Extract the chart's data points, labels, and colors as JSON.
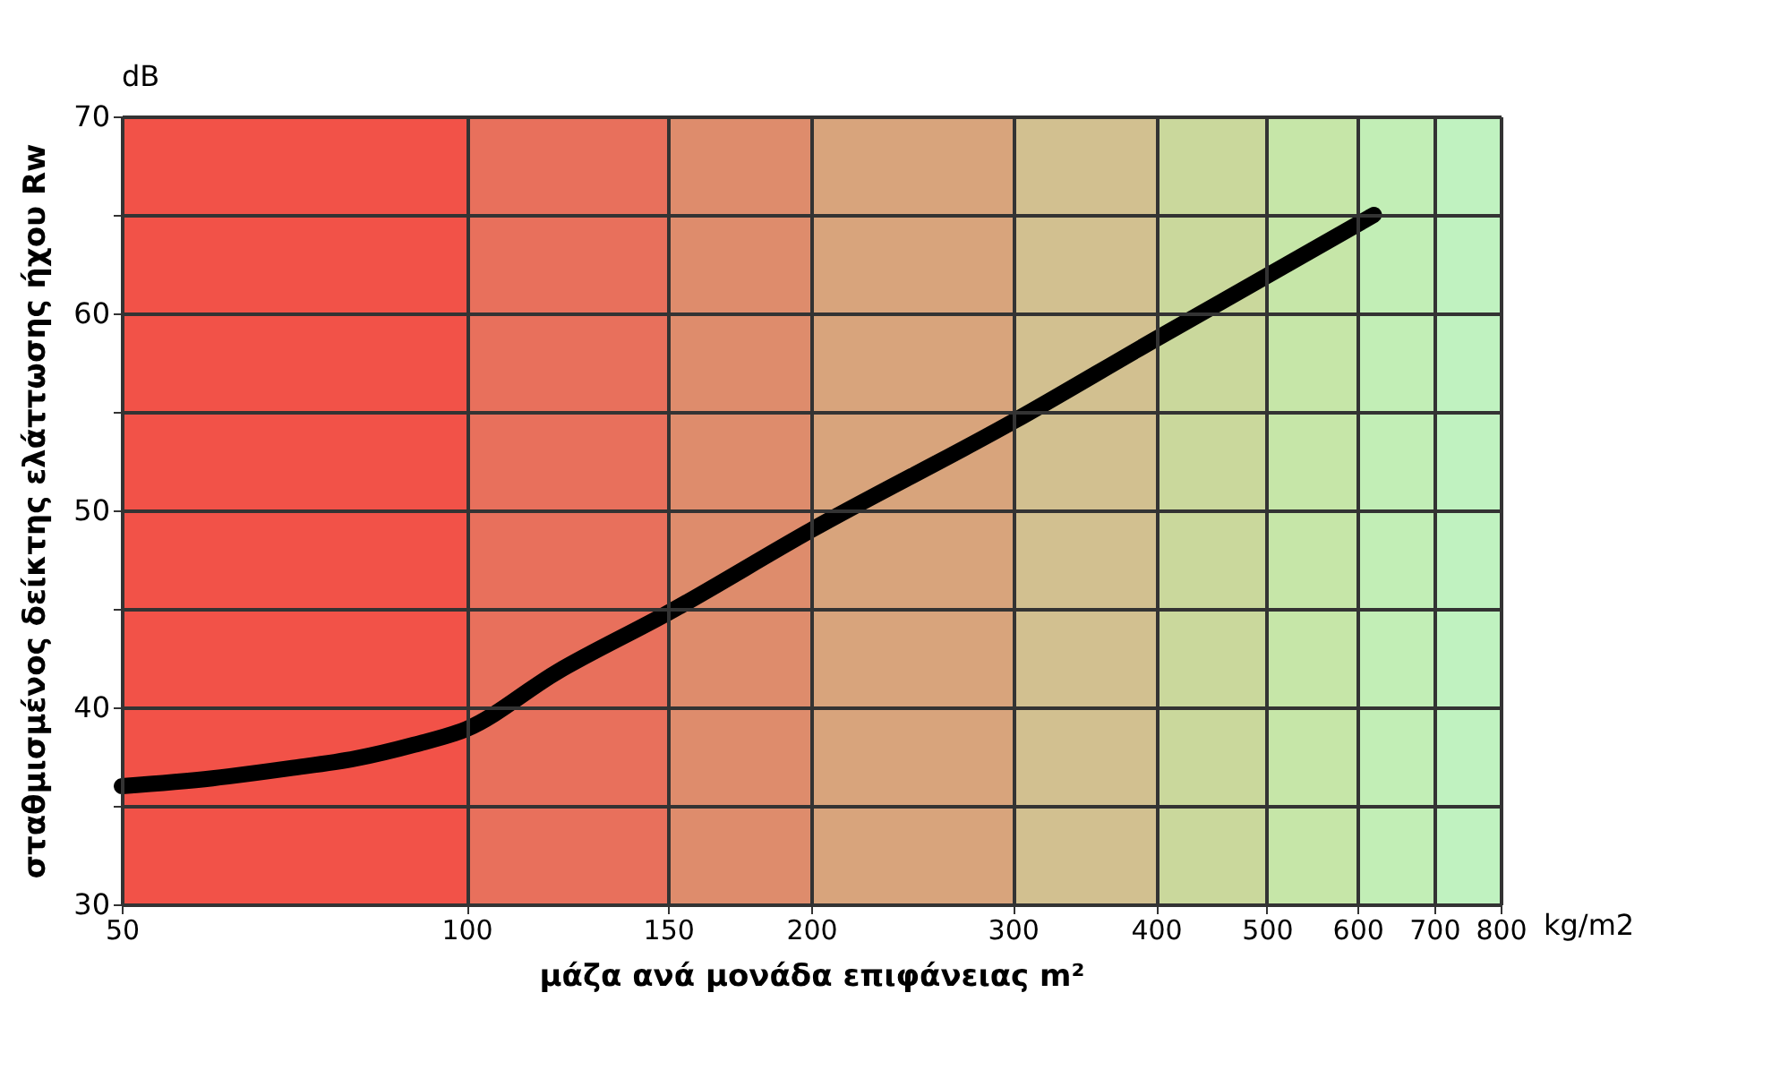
{
  "chart_data": {
    "type": "line",
    "xlabel": "μάζα ανά μονάδα επιφάνειας m²",
    "ylabel": "σταθμισμένος δείκτης ελάττωσης ήχου Rw",
    "annotations": [
      "dB",
      "kg/m2"
    ],
    "x": [
      50,
      60,
      70,
      80,
      90,
      100,
      120,
      150,
      200,
      300,
      400,
      500,
      620
    ],
    "series": [
      {
        "color": "#000000",
        "values": [
          36,
          36.4,
          36.9,
          37.4,
          38.1,
          38.9,
          41.8,
          44.8,
          49,
          54.5,
          58.7,
          61.9,
          65
        ]
      }
    ],
    "log": "x",
    "xlim": [
      50,
      800
    ],
    "xticks": [
      50,
      100,
      150,
      200,
      300,
      400,
      500,
      600,
      700,
      800
    ],
    "ylim": [
      30,
      70
    ],
    "yticks": [
      30,
      {
        "value": 35,
        "label": null
      },
      40,
      {
        "value": 45,
        "label": null
      },
      50,
      {
        "value": 55,
        "label": null
      },
      60,
      {
        "value": 65,
        "label": null
      },
      70
    ],
    "grid": true,
    "marker": "none",
    "line_style": "solid",
    "bands": [
      {
        "axis": "x",
        "from": 50,
        "to": 100,
        "color": "#f25248"
      },
      {
        "axis": "x",
        "from": 100,
        "to": 150,
        "color": "#e8705c"
      },
      {
        "axis": "x",
        "from": 150,
        "to": 200,
        "color": "#de8c6c"
      },
      {
        "axis": "x",
        "from": 200,
        "to": 300,
        "color": "#d8a47c"
      },
      {
        "axis": "x",
        "from": 300,
        "to": 400,
        "color": "#d2c090"
      },
      {
        "axis": "x",
        "from": 400,
        "to": 500,
        "color": "#cad89c"
      },
      {
        "axis": "x",
        "from": 500,
        "to": 600,
        "color": "#c6e6a8"
      },
      {
        "axis": "x",
        "from": 600,
        "to": 700,
        "color": "#c2eeb6"
      },
      {
        "axis": "x",
        "from": 700,
        "to": 800,
        "color": "#c0f2c0"
      }
    ]
  }
}
